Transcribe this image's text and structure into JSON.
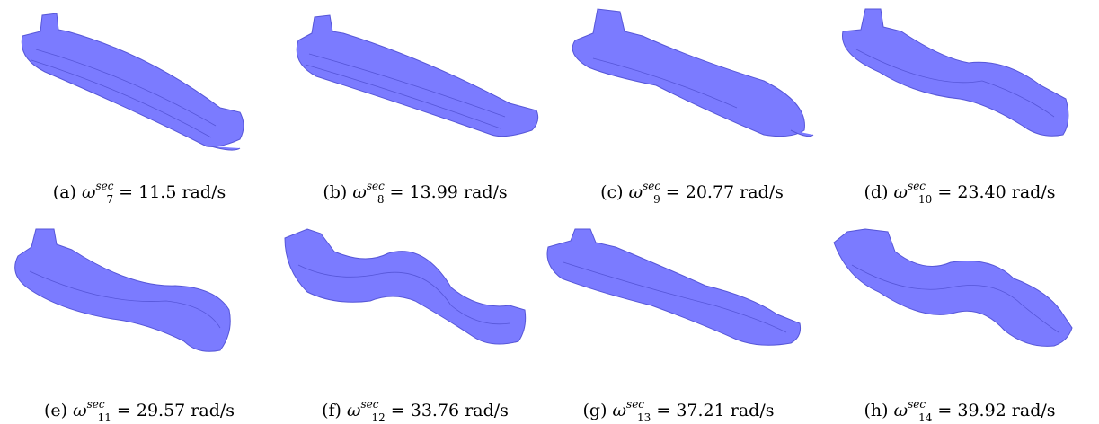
{
  "figure": {
    "panels": [
      {
        "tag": "(a)",
        "omega": "ω",
        "sup": "sec",
        "sub": "7",
        "eq": "= 11.5 rad/s"
      },
      {
        "tag": "(b)",
        "omega": "ω",
        "sup": "sec",
        "sub": "8",
        "eq": "= 13.99 rad/s"
      },
      {
        "tag": "(c)",
        "omega": "ω",
        "sup": "sec",
        "sub": "9",
        "eq": "= 20.77 rad/s"
      },
      {
        "tag": "(d)",
        "omega": "ω",
        "sup": "sec",
        "sub": "10",
        "eq": "= 23.40 rad/s"
      },
      {
        "tag": "(e)",
        "omega": "ω",
        "sup": "sec",
        "sub": "11",
        "eq": "= 29.57 rad/s"
      },
      {
        "tag": "(f)",
        "omega": "ω",
        "sup": "sec",
        "sub": "12",
        "eq": "= 33.76 rad/s"
      },
      {
        "tag": "(g)",
        "omega": "ω",
        "sup": "sec",
        "sub": "13",
        "eq": "= 37.21 rad/s"
      },
      {
        "tag": "(h)",
        "omega": "ω",
        "sup": "sec",
        "sub": "14",
        "eq": "= 39.92 rad/s"
      }
    ],
    "ship_color": "#7b7bff",
    "ship_edge_color": "#5656d8"
  }
}
